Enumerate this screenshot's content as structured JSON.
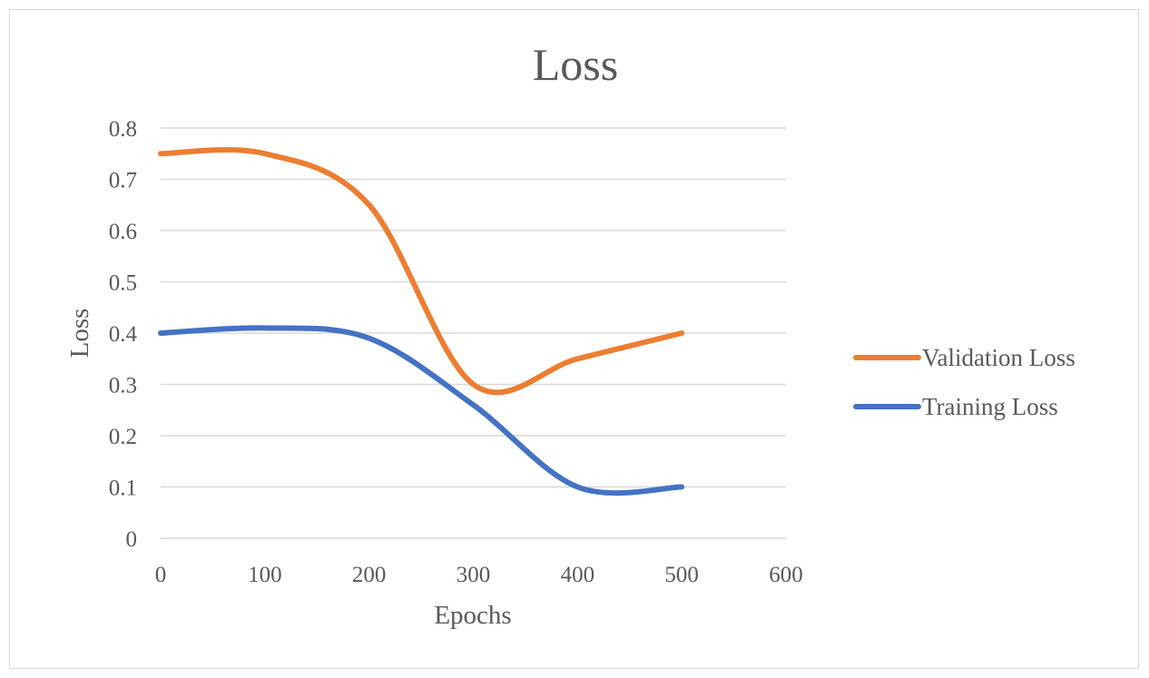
{
  "chart_data": {
    "type": "line",
    "title": "Loss",
    "xlabel": "Epochs",
    "ylabel": "Loss",
    "xlim": [
      0,
      600
    ],
    "ylim": [
      0,
      0.8
    ],
    "x_ticks": [
      "0",
      "100",
      "200",
      "300",
      "400",
      "500",
      "600"
    ],
    "y_ticks": [
      "0",
      "0.1",
      "0.2",
      "0.3",
      "0.4",
      "0.5",
      "0.6",
      "0.7",
      "0.8"
    ],
    "grid": true,
    "legend_position": "right",
    "series": [
      {
        "name": "Validation Loss",
        "color": "#ed7d31",
        "x": [
          0,
          100,
          200,
          300,
          400,
          500
        ],
        "y": [
          0.75,
          0.75,
          0.65,
          0.3,
          0.35,
          0.4
        ]
      },
      {
        "name": "Training Loss",
        "color": "#4472c4",
        "x": [
          0,
          100,
          200,
          300,
          400,
          500
        ],
        "y": [
          0.4,
          0.41,
          0.39,
          0.26,
          0.1,
          0.1
        ]
      }
    ]
  }
}
